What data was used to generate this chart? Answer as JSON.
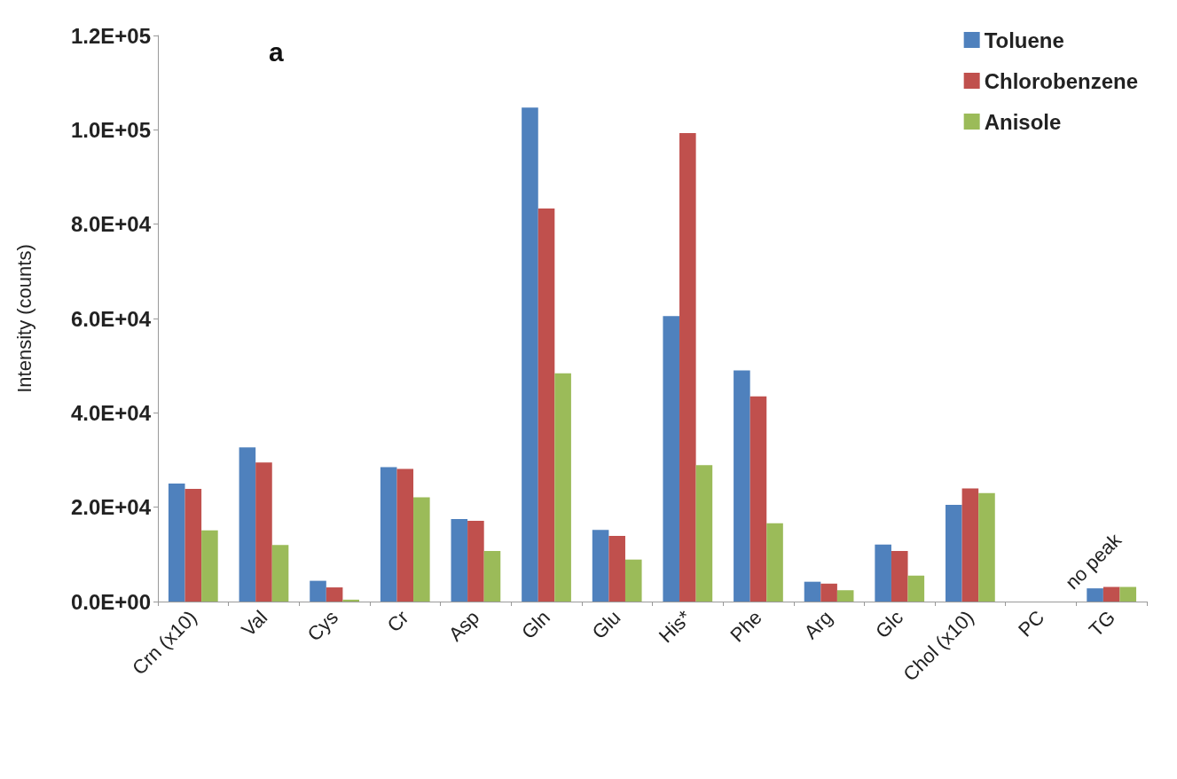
{
  "chart_data": {
    "type": "bar",
    "title": "a",
    "ylabel": "Intensity (counts)",
    "categories": [
      "Crn (x10)",
      "Val",
      "Cys",
      "Cr",
      "Asp",
      "Gln",
      "Glu",
      "His*",
      "Phe",
      "Arg",
      "Glc",
      "Chol (x10)",
      "PC",
      "TG"
    ],
    "series": [
      {
        "name": "Toluene",
        "color": "#4f81bd",
        "values": [
          25000,
          32700,
          4400,
          28500,
          17500,
          104700,
          15200,
          60500,
          49000,
          4200,
          12100,
          20500,
          null,
          2800
        ]
      },
      {
        "name": "Chlorobenzene",
        "color": "#c0504d",
        "values": [
          23900,
          29500,
          3000,
          28100,
          17100,
          83300,
          13900,
          99300,
          43500,
          3800,
          10700,
          24000,
          null,
          3100
        ]
      },
      {
        "name": "Anisole",
        "color": "#9bbb59",
        "values": [
          15100,
          12000,
          400,
          22100,
          10700,
          48400,
          8900,
          28900,
          16600,
          2400,
          5500,
          23000,
          null,
          3100
        ]
      }
    ],
    "ylim": [
      0,
      120000
    ],
    "yticks": [
      {
        "value": 0,
        "label": "0.0E+00"
      },
      {
        "value": 20000,
        "label": "2.0E+04"
      },
      {
        "value": 40000,
        "label": "4.0E+04"
      },
      {
        "value": 60000,
        "label": "6.0E+04"
      },
      {
        "value": 80000,
        "label": "8.0E+04"
      },
      {
        "value": 100000,
        "label": "1.0E+05"
      },
      {
        "value": 120000,
        "label": "1.2E+05"
      }
    ],
    "annotations": [
      "no peak"
    ],
    "grid": false,
    "legend": "top right"
  }
}
